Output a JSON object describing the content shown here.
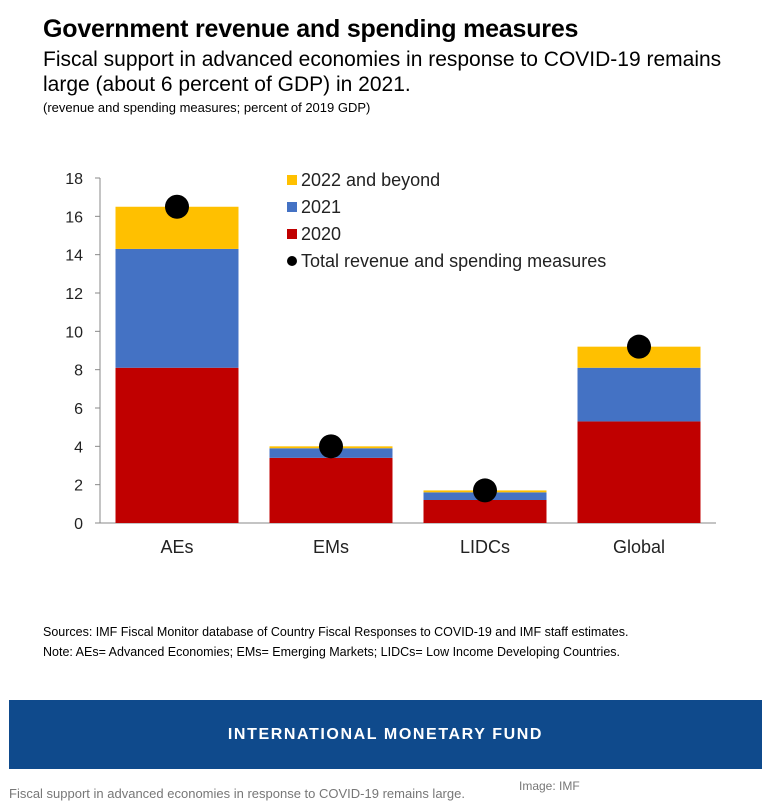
{
  "header": {
    "title": "Government revenue and spending measures",
    "subtitle": "Fiscal support in advanced economies in response to COVID-19 remains large (about 6 percent of GDP) in 2021.",
    "unit": "(revenue and spending measures; percent of 2019 GDP)"
  },
  "notes": {
    "sources": "Sources: IMF Fiscal Monitor database of Country Fiscal Responses to COVID-19 and IMF staff estimates.",
    "note": "Note: AEs= Advanced Economies; EMs= Emerging Markets; LIDCs= Low Income Developing Countries."
  },
  "banner": {
    "text": "INTERNATIONAL MONETARY FUND"
  },
  "caption": "Fiscal support in advanced economies in response to COVID-19 remains large.",
  "credit": "Image: IMF",
  "colors": {
    "2020": "#c00000",
    "2021": "#4472c4",
    "2022 and beyond": "#ffc000",
    "total": "#000000",
    "banner": "#0f4a8c"
  },
  "chart_data": {
    "type": "bar",
    "stacked": true,
    "categories": [
      "AEs",
      "EMs",
      "LIDCs",
      "Global"
    ],
    "series": [
      {
        "name": "2020",
        "values": [
          8.1,
          3.4,
          1.2,
          5.3
        ]
      },
      {
        "name": "2021",
        "values": [
          6.2,
          0.5,
          0.4,
          2.8
        ]
      },
      {
        "name": "2022 and beyond",
        "values": [
          2.2,
          0.1,
          0.1,
          1.1
        ]
      }
    ],
    "markers": {
      "name": "Total revenue and spending measures",
      "values": [
        16.5,
        4.0,
        1.7,
        9.2
      ]
    },
    "legend_order": [
      "2022 and beyond",
      "2021",
      "2020",
      "Total revenue and spending measures"
    ],
    "ylim": [
      0,
      18
    ],
    "yticks": [
      0,
      2,
      4,
      6,
      8,
      10,
      12,
      14,
      16,
      18
    ],
    "xlabel": "",
    "ylabel": "",
    "grid": false,
    "legend_position": "top-center"
  }
}
